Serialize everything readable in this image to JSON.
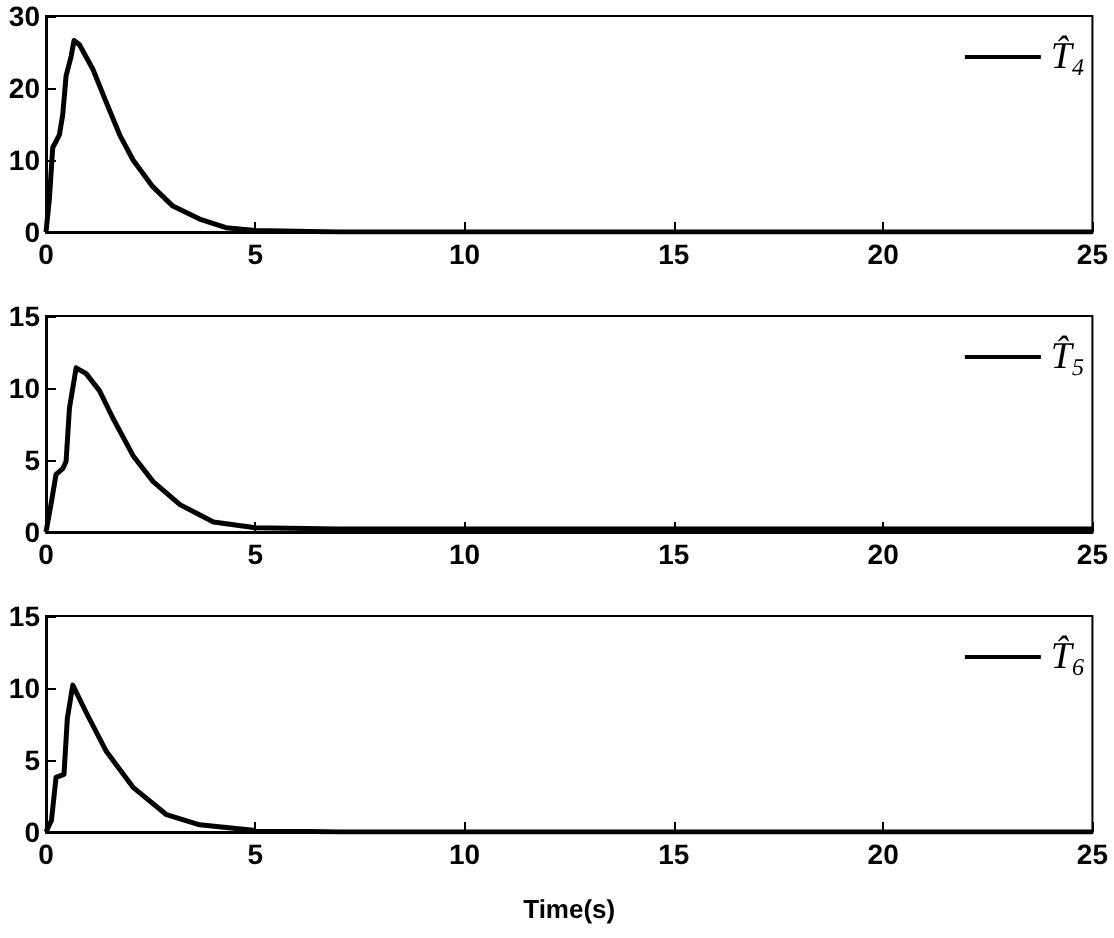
{
  "chart_data": [
    {
      "type": "line",
      "xlim": [
        0,
        25
      ],
      "xticks": [
        0,
        5,
        10,
        15,
        20,
        25
      ],
      "ylim": [
        0,
        30
      ],
      "yticks": [
        0,
        10,
        20,
        30
      ],
      "grid": false,
      "legend": "top right",
      "marker": "none",
      "line_style": "solid",
      "series": [
        {
          "name": "T̂$_{4}$",
          "color": "#000000",
          "x": [
            0,
            0.08,
            0.16,
            0.32,
            0.4,
            0.48,
            0.6,
            0.67,
            0.8,
            1.12,
            1.44,
            1.76,
            2.08,
            2.55,
            3.03,
            3.67,
            4.3,
            5,
            6,
            7,
            25
          ],
          "values": [
            0,
            4.5,
            11.7,
            13.5,
            16.3,
            21.7,
            24.4,
            26.6,
            26,
            22.6,
            18,
            13.5,
            10,
            6.3,
            3.6,
            1.8,
            0.6,
            0.2,
            0.1,
            0,
            0
          ]
        }
      ]
    },
    {
      "type": "line",
      "xlim": [
        0,
        25
      ],
      "xticks": [
        0,
        5,
        10,
        15,
        20,
        25
      ],
      "ylim": [
        0,
        15
      ],
      "yticks": [
        0,
        5,
        10,
        15
      ],
      "grid": false,
      "legend": "top right",
      "marker": "none",
      "line_style": "solid",
      "series": [
        {
          "name": "T̂$_{5}$",
          "color": "#000000",
          "x": [
            0,
            0.13,
            0.24,
            0.4,
            0.48,
            0.56,
            0.72,
            0.96,
            1.28,
            1.6,
            2.08,
            2.56,
            3.2,
            4,
            5,
            7,
            25
          ],
          "values": [
            0,
            2.1,
            4,
            4.4,
            4.9,
            8.6,
            11.4,
            11,
            9.8,
            7.9,
            5.3,
            3.5,
            1.9,
            0.7,
            0.3,
            0.2,
            0.2
          ]
        }
      ]
    },
    {
      "type": "line",
      "xlabel": "Time(s)",
      "xlim": [
        0,
        25
      ],
      "xticks": [
        0,
        5,
        10,
        15,
        20,
        25
      ],
      "ylim": [
        0,
        15
      ],
      "yticks": [
        0,
        5,
        10,
        15
      ],
      "grid": false,
      "legend": "top right",
      "marker": "none",
      "line_style": "solid",
      "series": [
        {
          "name": "T̂$_{6}$",
          "color": "#000000",
          "x": [
            0,
            0.13,
            0.24,
            0.43,
            0.51,
            0.64,
            0.96,
            1.44,
            2.08,
            2.88,
            3.67,
            5,
            7,
            25
          ],
          "values": [
            0,
            0.8,
            3.8,
            4,
            7.9,
            10.2,
            8.3,
            5.6,
            3.1,
            1.2,
            0.5,
            0.1,
            0,
            0
          ]
        }
      ]
    }
  ]
}
